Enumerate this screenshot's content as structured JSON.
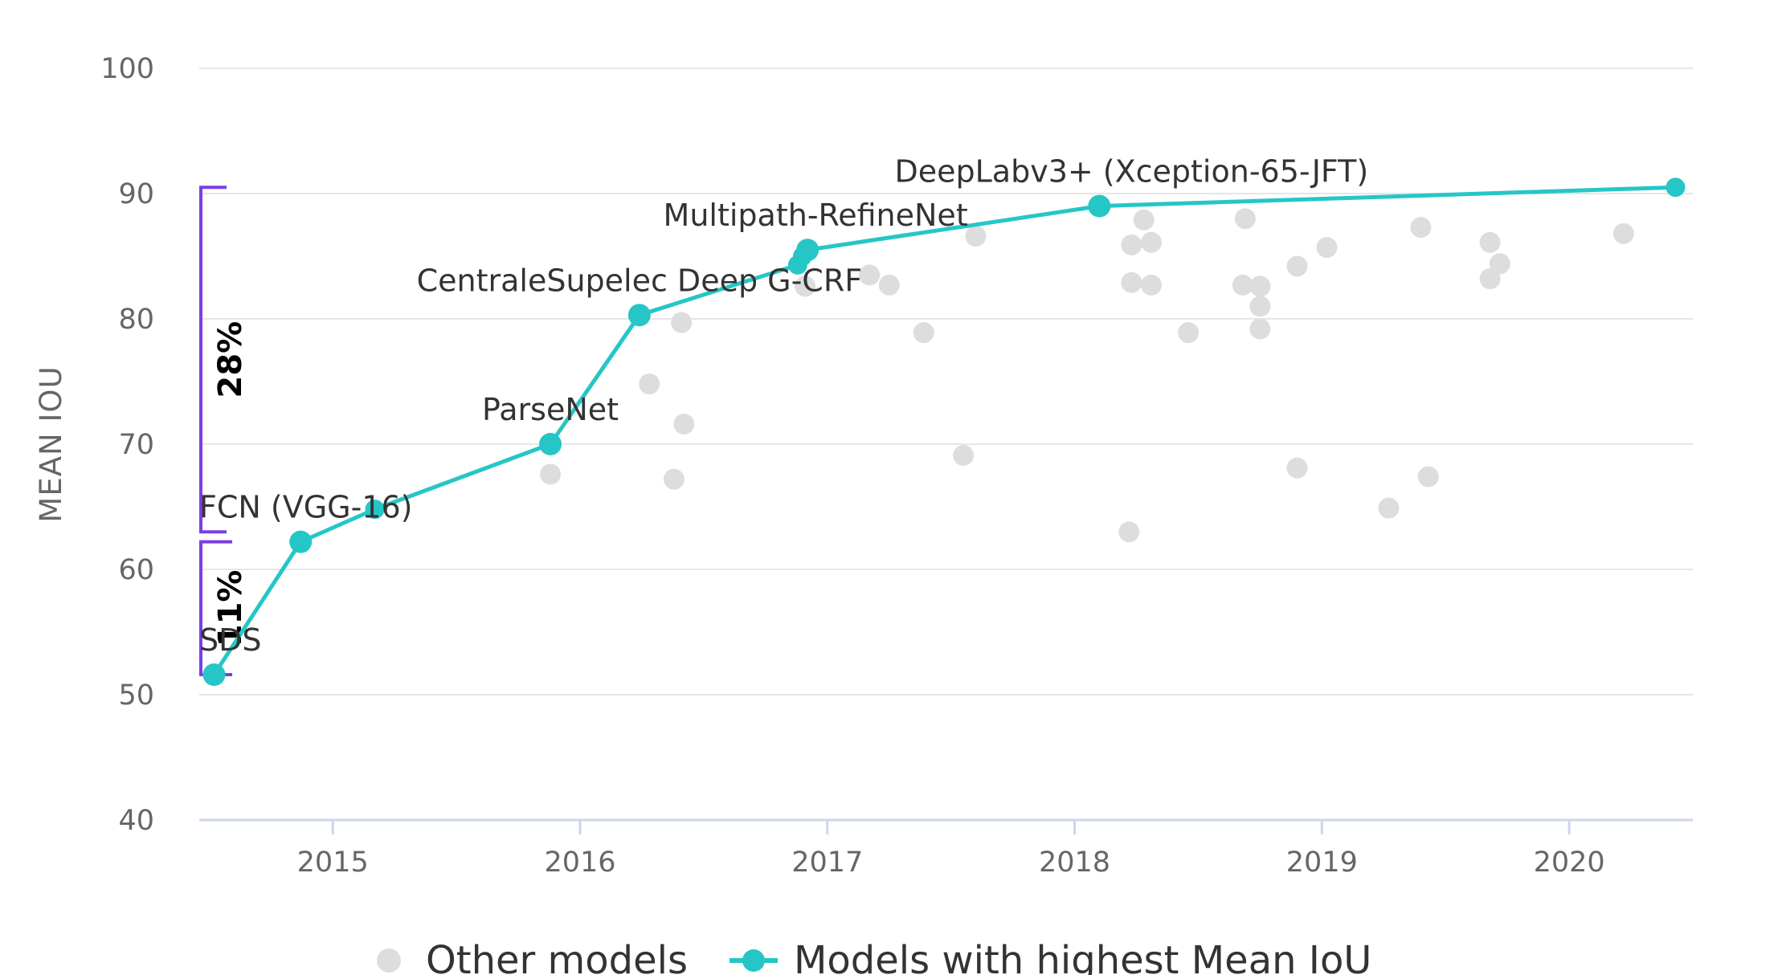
{
  "chart_data": {
    "type": "scatter",
    "title": "",
    "xlabel": "",
    "ylabel": "MEAN IOU",
    "xlim": [
      2014.46,
      2020.5
    ],
    "ylim": [
      40,
      100
    ],
    "x_ticks": [
      "2015",
      "2016",
      "2017",
      "2018",
      "2019",
      "2020"
    ],
    "y_ticks": [
      "40",
      "50",
      "60",
      "70",
      "80",
      "90",
      "100"
    ],
    "grid": "horizontal",
    "legend": {
      "position": "bottom-center",
      "entries": [
        "Other models",
        "Models with highest Mean IoU"
      ]
    },
    "colors": {
      "best": "#26c6c6",
      "other": "#dddddd",
      "bracket": "#7b3fe4",
      "grid": "#e6e6e6",
      "axis": "#ccd6eb"
    },
    "series": [
      {
        "name": "Models with highest Mean IoU",
        "points": [
          {
            "x": 2014.52,
            "y": 51.6,
            "label": "SDS"
          },
          {
            "x": 2014.87,
            "y": 62.2,
            "label": "FCN (VGG-16)"
          },
          {
            "x": 2015.17,
            "y": 64.8,
            "label": ""
          },
          {
            "x": 2015.88,
            "y": 70.0,
            "label": "ParseNet"
          },
          {
            "x": 2016.24,
            "y": 80.3,
            "label": "CentraleSupelec Deep G-CRF"
          },
          {
            "x": 2016.88,
            "y": 84.3,
            "label": ""
          },
          {
            "x": 2016.9,
            "y": 85.0,
            "label": ""
          },
          {
            "x": 2016.92,
            "y": 85.5,
            "label": "Multipath-RefineNet"
          },
          {
            "x": 2018.1,
            "y": 89.0,
            "label": "DeepLabv3+ (Xception-65-JFT)"
          },
          {
            "x": 2020.43,
            "y": 90.5,
            "label": ""
          }
        ]
      },
      {
        "name": "Other models",
        "points": [
          {
            "x": 2015.88,
            "y": 67.6
          },
          {
            "x": 2016.28,
            "y": 74.8
          },
          {
            "x": 2016.38,
            "y": 67.2
          },
          {
            "x": 2016.41,
            "y": 79.7
          },
          {
            "x": 2016.42,
            "y": 71.6
          },
          {
            "x": 2016.91,
            "y": 82.6
          },
          {
            "x": 2017.17,
            "y": 83.5
          },
          {
            "x": 2017.25,
            "y": 82.7
          },
          {
            "x": 2017.39,
            "y": 78.9
          },
          {
            "x": 2017.55,
            "y": 69.1
          },
          {
            "x": 2017.6,
            "y": 86.6
          },
          {
            "x": 2018.22,
            "y": 63.0
          },
          {
            "x": 2018.23,
            "y": 85.9
          },
          {
            "x": 2018.23,
            "y": 82.9
          },
          {
            "x": 2018.28,
            "y": 87.9
          },
          {
            "x": 2018.31,
            "y": 82.7
          },
          {
            "x": 2018.31,
            "y": 86.1
          },
          {
            "x": 2018.46,
            "y": 78.9
          },
          {
            "x": 2018.68,
            "y": 82.7
          },
          {
            "x": 2018.69,
            "y": 88.0
          },
          {
            "x": 2018.75,
            "y": 82.6
          },
          {
            "x": 2018.75,
            "y": 81.0
          },
          {
            "x": 2018.75,
            "y": 79.2
          },
          {
            "x": 2018.9,
            "y": 84.2
          },
          {
            "x": 2018.9,
            "y": 68.1
          },
          {
            "x": 2019.02,
            "y": 85.7
          },
          {
            "x": 2019.27,
            "y": 64.9
          },
          {
            "x": 2019.4,
            "y": 87.3
          },
          {
            "x": 2019.43,
            "y": 67.4
          },
          {
            "x": 2019.68,
            "y": 86.1
          },
          {
            "x": 2019.68,
            "y": 83.2
          },
          {
            "x": 2019.72,
            "y": 84.4
          },
          {
            "x": 2020.22,
            "y": 86.8
          }
        ]
      }
    ],
    "annotations": [
      {
        "label": "11%",
        "from": 51.6,
        "to": 62.2
      },
      {
        "label": "28%",
        "from": 63.0,
        "to": 90.5
      }
    ]
  }
}
